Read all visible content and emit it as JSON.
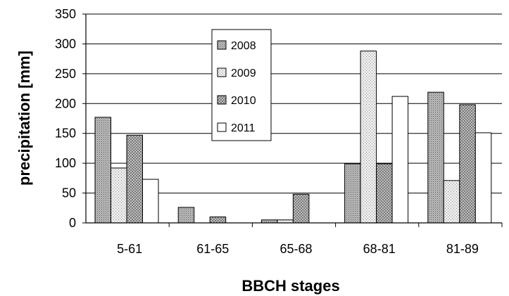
{
  "chart_data": {
    "type": "bar",
    "title": "",
    "xlabel": "BBCH stages",
    "ylabel": "precipitation [mm]",
    "categories": [
      "5-61",
      "61-65",
      "65-68",
      "68-81",
      "81-89"
    ],
    "yticks": [
      "0",
      "50",
      "100",
      "150",
      "200",
      "250",
      "300",
      "350"
    ],
    "ylim": [
      0,
      350
    ],
    "grid": true,
    "legend_position": "top-center",
    "series": [
      {
        "name": "2008",
        "values": [
          177,
          26,
          5,
          99,
          219
        ],
        "pattern": "fine-dots",
        "color": "#a8a8a8"
      },
      {
        "name": "2009",
        "values": [
          92,
          0,
          5,
          288,
          71
        ],
        "pattern": "light-dots",
        "color": "#dcdcdc"
      },
      {
        "name": "2010",
        "values": [
          147,
          10,
          48,
          99,
          198
        ],
        "pattern": "crosshatch",
        "color": "#b4b4b4"
      },
      {
        "name": "2011",
        "values": [
          73,
          0,
          0,
          212,
          151
        ],
        "pattern": "solid",
        "color": "#ffffff"
      }
    ]
  }
}
